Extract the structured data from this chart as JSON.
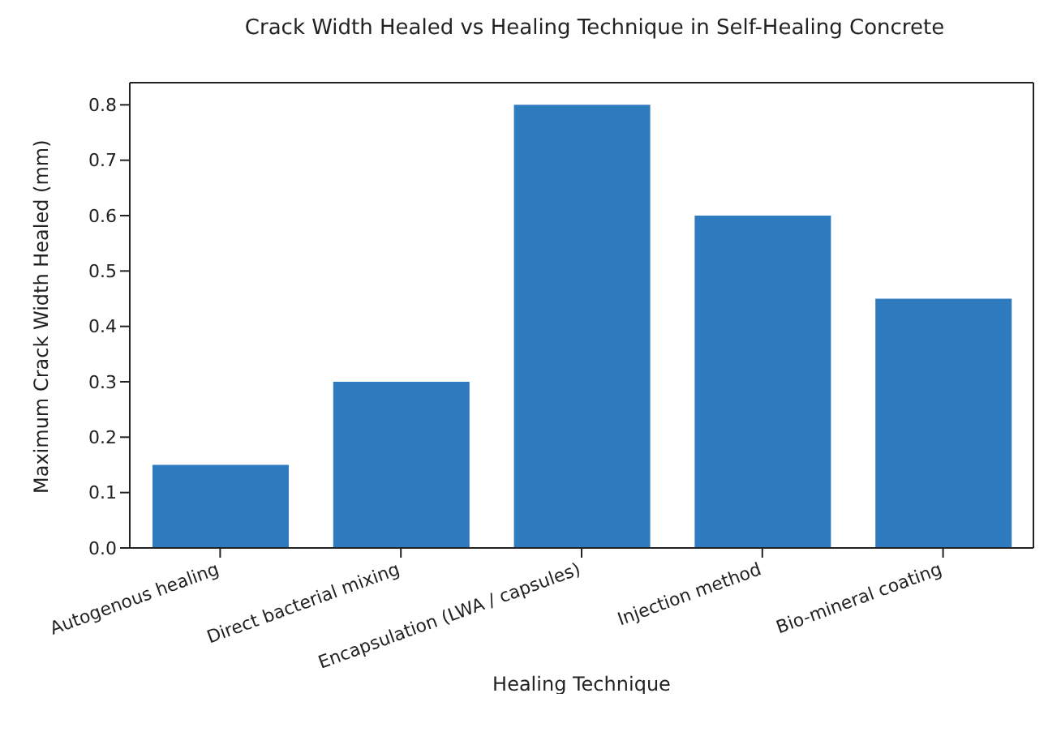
{
  "chart_data": {
    "type": "bar",
    "title": "Crack Width Healed vs Healing Technique in Self-Healing Concrete",
    "xlabel": "Healing Technique",
    "ylabel": "Maximum Crack Width Healed (mm)",
    "categories": [
      "Autogenous healing",
      "Direct bacterial mixing",
      "Encapsulation (LWA / capsules)",
      "Injection method",
      "Bio-mineral coating"
    ],
    "values": [
      0.15,
      0.3,
      0.8,
      0.6,
      0.45
    ],
    "color": "#2f7bbf",
    "ylim": [
      0,
      0.84
    ],
    "yticks": [
      {
        "value": 0,
        "label": "0.0"
      },
      0.1,
      0.2,
      0.3,
      0.4,
      0.5,
      0.6,
      0.7,
      0.8
    ],
    "grid": false,
    "legend": false
  }
}
